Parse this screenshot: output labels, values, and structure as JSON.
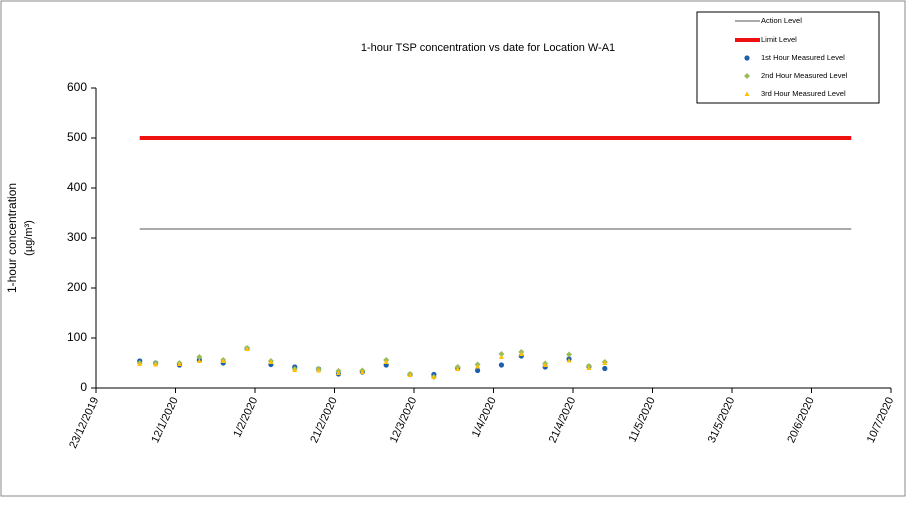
{
  "chart_data": {
    "type": "scatter",
    "title": "1-hour TSP concentration vs date for Location W-A1",
    "y_label": [
      "1-hour concentration",
      "(µg/m³)"
    ],
    "xlim": [
      "23/12/2019",
      "10/7/2020"
    ],
    "xticks": [
      "23/12/2019",
      "12/1/2020",
      "1/2/2020",
      "21/2/2020",
      "12/3/2020",
      "1/4/2020",
      "21/4/2020",
      "11/5/2020",
      "31/5/2020",
      "20/6/2020",
      "10/7/2020"
    ],
    "ylim": [
      0,
      600
    ],
    "yticks": [
      0,
      100,
      200,
      300,
      400,
      500,
      600
    ],
    "series": [
      {
        "name": "Action Level",
        "type": "line",
        "color": "#555555",
        "width": 1,
        "x": [
          "3/1/2020",
          "30/6/2020"
        ],
        "values": [
          318,
          318
        ]
      },
      {
        "name": "Limit Level",
        "type": "line",
        "color": "#ee1111",
        "width": 4,
        "x": [
          "3/1/2020",
          "30/6/2020"
        ],
        "values": [
          500,
          500
        ]
      },
      {
        "name": "1st Hour Measured Level",
        "type": "scatter",
        "marker": "circle",
        "color": "#1f5fad",
        "x": [
          "3/1/2020",
          "7/1/2020",
          "13/1/2020",
          "18/1/2020",
          "24/1/2020",
          "30/1/2020",
          "5/2/2020",
          "11/2/2020",
          "17/2/2020",
          "22/2/2020",
          "28/2/2020",
          "5/3/2020",
          "11/3/2020",
          "17/3/2020",
          "23/3/2020",
          "28/3/2020",
          "3/4/2020",
          "8/4/2020",
          "14/4/2020",
          "20/4/2020",
          "25/4/2020",
          "29/4/2020"
        ],
        "values": [
          54,
          50,
          46,
          56,
          50,
          79,
          47,
          42,
          38,
          28,
          32,
          46,
          27,
          27,
          40,
          35,
          46,
          64,
          42,
          58,
          43,
          39
        ]
      },
      {
        "name": "2nd Hour Measured Level",
        "type": "scatter",
        "marker": "diamond",
        "color": "#9bbb59",
        "x": [
          "3/1/2020",
          "7/1/2020",
          "13/1/2020",
          "18/1/2020",
          "24/1/2020",
          "30/1/2020",
          "5/2/2020",
          "11/2/2020",
          "17/2/2020",
          "22/2/2020",
          "28/2/2020",
          "5/3/2020",
          "11/3/2020",
          "17/3/2020",
          "23/3/2020",
          "28/3/2020",
          "3/4/2020",
          "8/4/2020",
          "14/4/2020",
          "20/4/2020",
          "25/4/2020",
          "29/4/2020"
        ],
        "values": [
          50,
          50,
          50,
          62,
          56,
          80,
          54,
          38,
          38,
          34,
          35,
          56,
          28,
          22,
          42,
          47,
          68,
          72,
          49,
          67,
          44,
          52
        ]
      },
      {
        "name": "3rd Hour Measured Level",
        "type": "scatter",
        "marker": "triangle",
        "color": "#ffc000",
        "x": [
          "3/1/2020",
          "7/1/2020",
          "13/1/2020",
          "18/1/2020",
          "24/1/2020",
          "30/1/2020",
          "5/2/2020",
          "11/2/2020",
          "17/2/2020",
          "22/2/2020",
          "28/2/2020",
          "5/3/2020",
          "11/3/2020",
          "17/3/2020",
          "23/3/2020",
          "28/3/2020",
          "3/4/2020",
          "8/4/2020",
          "14/4/2020",
          "20/4/2020",
          "25/4/2020",
          "29/4/2020"
        ],
        "values": [
          48,
          47,
          48,
          54,
          54,
          78,
          52,
          36,
          35,
          30,
          32,
          52,
          26,
          22,
          38,
          43,
          62,
          68,
          46,
          55,
          40,
          50
        ]
      }
    ]
  }
}
